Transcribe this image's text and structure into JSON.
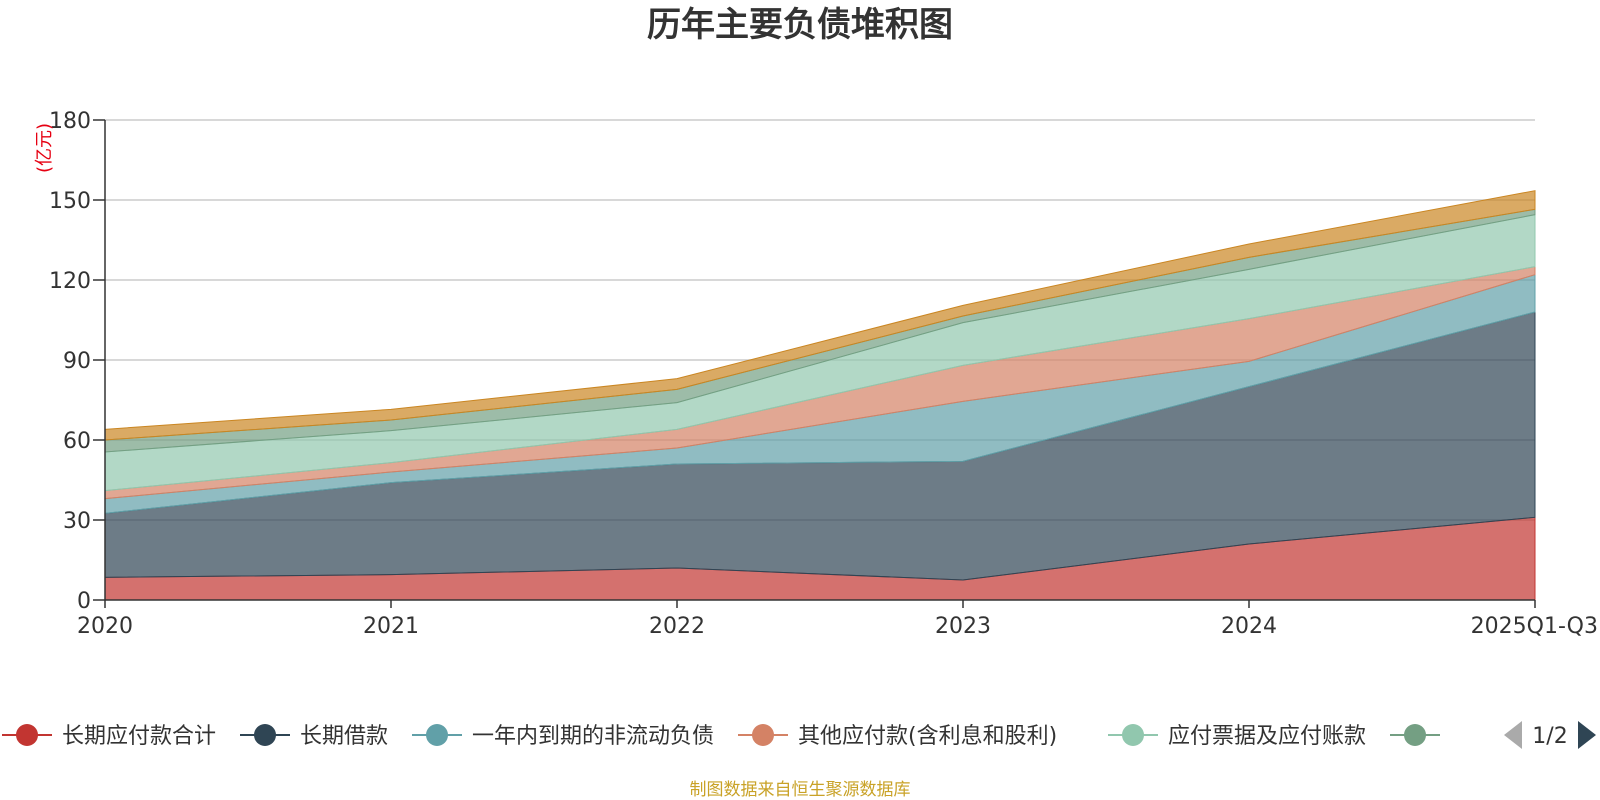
{
  "chart_data": {
    "type": "area",
    "stacked": true,
    "title": "历年主要负债堆积图",
    "unit_label": "(亿元)",
    "categories": [
      "2020",
      "2021",
      "2022",
      "2023",
      "2024",
      "2025Q1-Q3"
    ],
    "ylim": [
      0,
      180
    ],
    "yticks": [
      "0",
      "30",
      "60",
      "90",
      "120",
      "150",
      "180"
    ],
    "grid": true,
    "series": [
      {
        "name": "长期应付款合计",
        "color": "#c23531",
        "values": [
          8.5,
          9.5,
          12,
          7.5,
          21,
          31
        ]
      },
      {
        "name": "长期借款",
        "color": "#2f4554",
        "values": [
          24,
          34.5,
          39,
          44.5,
          59,
          77
        ]
      },
      {
        "name": "一年内到期的非流动负债",
        "color": "#61a0a8",
        "values": [
          5.5,
          4,
          6,
          22.5,
          9.5,
          14
        ]
      },
      {
        "name": "其他应付款(含利息和股利)",
        "color": "#d48265",
        "values": [
          3,
          3.5,
          7,
          13.5,
          16,
          3
        ]
      },
      {
        "name": "应付票据及应付账款",
        "color": "#91c7ae",
        "values": [
          14.5,
          12,
          10,
          16,
          18.5,
          19.5
        ]
      },
      {
        "name": "",
        "color": "#749f83",
        "values": [
          4.5,
          4,
          5,
          2.5,
          4.5,
          2
        ]
      },
      {
        "name": "",
        "color": "#ca8622",
        "values": [
          4,
          4,
          4,
          4,
          5,
          7
        ]
      }
    ],
    "legend": {
      "position": "bottom",
      "page": "1/2"
    },
    "source": "制图数据来自恒生聚源数据库"
  }
}
